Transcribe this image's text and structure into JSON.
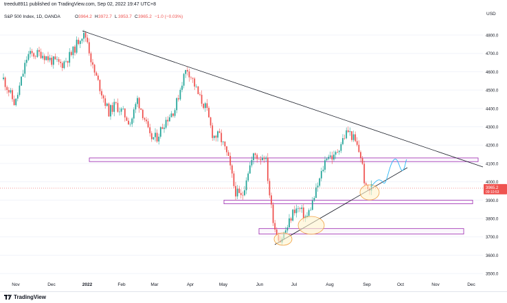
{
  "header": {
    "published": "treedu8911 published on TradingView.com, Sep 02, 2022 19:47 UTC+8"
  },
  "footer": {
    "brand": "TradingView"
  },
  "chart_data": {
    "type": "candlestick",
    "legend_line": "S&P 500 Index, 1D, OANDA",
    "ohlc": [
      {
        "label": "O",
        "value": "3964.2"
      },
      {
        "label": "H",
        "value": "3972.7"
      },
      {
        "label": "L",
        "value": "3953.7"
      },
      {
        "label": "C",
        "value": "3965.2"
      }
    ],
    "change": "−1.0 (−0.03%)",
    "currency": "USD",
    "y_ticks": [
      3500,
      3600,
      3700,
      3800,
      3900,
      4000,
      4100,
      4200,
      4300,
      4400,
      4500,
      4600,
      4700,
      4800
    ],
    "y_tick_labels": [
      "3500.0",
      "3600.0",
      "3700.0",
      "3800.0",
      "3900.0",
      "4000.0",
      "4100.0",
      "4200.0",
      "4300.0",
      "4400.0",
      "4500.0",
      "4600.0",
      "4700.0",
      "4800.0"
    ],
    "x_ticks": [
      "Nov",
      "Dec",
      "2022",
      "Feb",
      "Mar",
      "Apr",
      "May",
      "Jun",
      "Jul",
      "Aug",
      "Sep",
      "Oct",
      "Nov",
      "Dec"
    ],
    "last_price": {
      "value": "3965.2",
      "time": "09:10:53"
    },
    "colors": {
      "up": "#26a69a",
      "down": "#ef5350",
      "box": "#9c27b0",
      "trend": "#131722",
      "forecast": "#29b6f6",
      "circle_fill": "#fff3cd",
      "circle_stroke": "#f0a040"
    },
    "monthly_path": [
      {
        "month": "Oct 2021",
        "close": 4605
      },
      {
        "month": "Nov 2021",
        "close": 4567
      },
      {
        "month": "Dec 2021",
        "close": 4766
      },
      {
        "month": "Jan 2022",
        "close": 4515
      },
      {
        "month": "Feb 2022",
        "close": 4373
      },
      {
        "month": "Mar 2022",
        "close": 4530
      },
      {
        "month": "Apr 2022",
        "close": 4131
      },
      {
        "month": "May 2022",
        "close": 4132
      },
      {
        "month": "Jun 2022",
        "close": 3785
      },
      {
        "month": "Jul 2022",
        "close": 4130
      },
      {
        "month": "Aug 2022",
        "close": 3955
      }
    ],
    "high_2022": {
      "date": "Jan 2022",
      "value": 4818
    },
    "low_2022": {
      "date": "Jun 2022",
      "value": 3637
    },
    "resistance_zones": [
      {
        "low": 4110,
        "high": 4130
      },
      {
        "low": 3880,
        "high": 3900
      },
      {
        "low": 3715,
        "high": 3745
      }
    ]
  }
}
